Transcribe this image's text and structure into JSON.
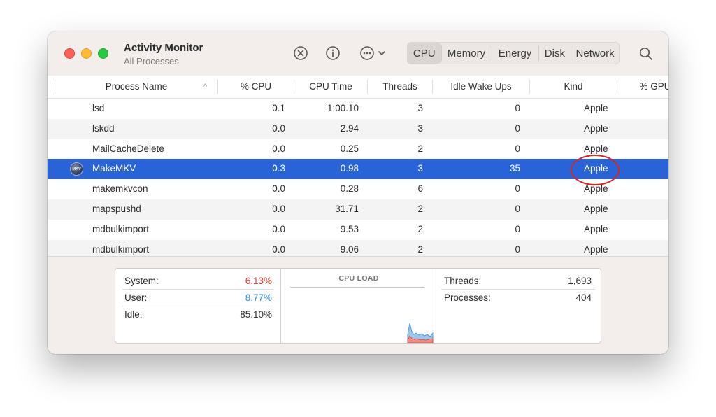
{
  "window": {
    "title": "Activity Monitor",
    "subtitle": "All Processes"
  },
  "toolbar": {
    "stop_icon": "x-circle-icon",
    "info_icon": "info-circle-icon",
    "more_icon": "ellipsis-circle-icon",
    "tabs": [
      "CPU",
      "Memory",
      "Energy",
      "Disk",
      "Network"
    ],
    "active_tab": "CPU",
    "search_icon": "magnifier-icon"
  },
  "table": {
    "columns": [
      "Process Name",
      "% CPU",
      "CPU Time",
      "Threads",
      "Idle Wake Ups",
      "Kind",
      "% GPU"
    ],
    "sort_indicator": "^",
    "rows": [
      {
        "name": "lsd",
        "cpu": "0.1",
        "time": "1:00.10",
        "threads": "3",
        "idle": "0",
        "kind": "Apple"
      },
      {
        "name": "lskdd",
        "cpu": "0.0",
        "time": "2.94",
        "threads": "3",
        "idle": "0",
        "kind": "Apple"
      },
      {
        "name": "MailCacheDelete",
        "cpu": "0.0",
        "time": "0.25",
        "threads": "2",
        "idle": "0",
        "kind": "Apple"
      },
      {
        "name": "MakeMKV",
        "cpu": "0.3",
        "time": "0.98",
        "threads": "3",
        "idle": "35",
        "kind": "Apple",
        "selected": true
      },
      {
        "name": "makemkvcon",
        "cpu": "0.0",
        "time": "0.28",
        "threads": "6",
        "idle": "0",
        "kind": "Apple"
      },
      {
        "name": "mapspushd",
        "cpu": "0.0",
        "time": "31.71",
        "threads": "2",
        "idle": "0",
        "kind": "Apple"
      },
      {
        "name": "mdbulkimport",
        "cpu": "0.0",
        "time": "9.53",
        "threads": "2",
        "idle": "0",
        "kind": "Apple"
      },
      {
        "name": "mdbulkimport",
        "cpu": "0.0",
        "time": "9.06",
        "threads": "2",
        "idle": "0",
        "kind": "Apple"
      }
    ],
    "selected_icon_label": "MKV"
  },
  "summary": {
    "system_label": "System:",
    "system_value": "6.13%",
    "system_color": "#e0382e",
    "user_label": "User:",
    "user_value": "8.77%",
    "user_color": "#2f8fe0",
    "idle_label": "Idle:",
    "idle_value": "85.10%",
    "load_title": "CPU LOAD",
    "threads_label": "Threads:",
    "threads_value": "1,693",
    "processes_label": "Processes:",
    "processes_value": "404"
  }
}
